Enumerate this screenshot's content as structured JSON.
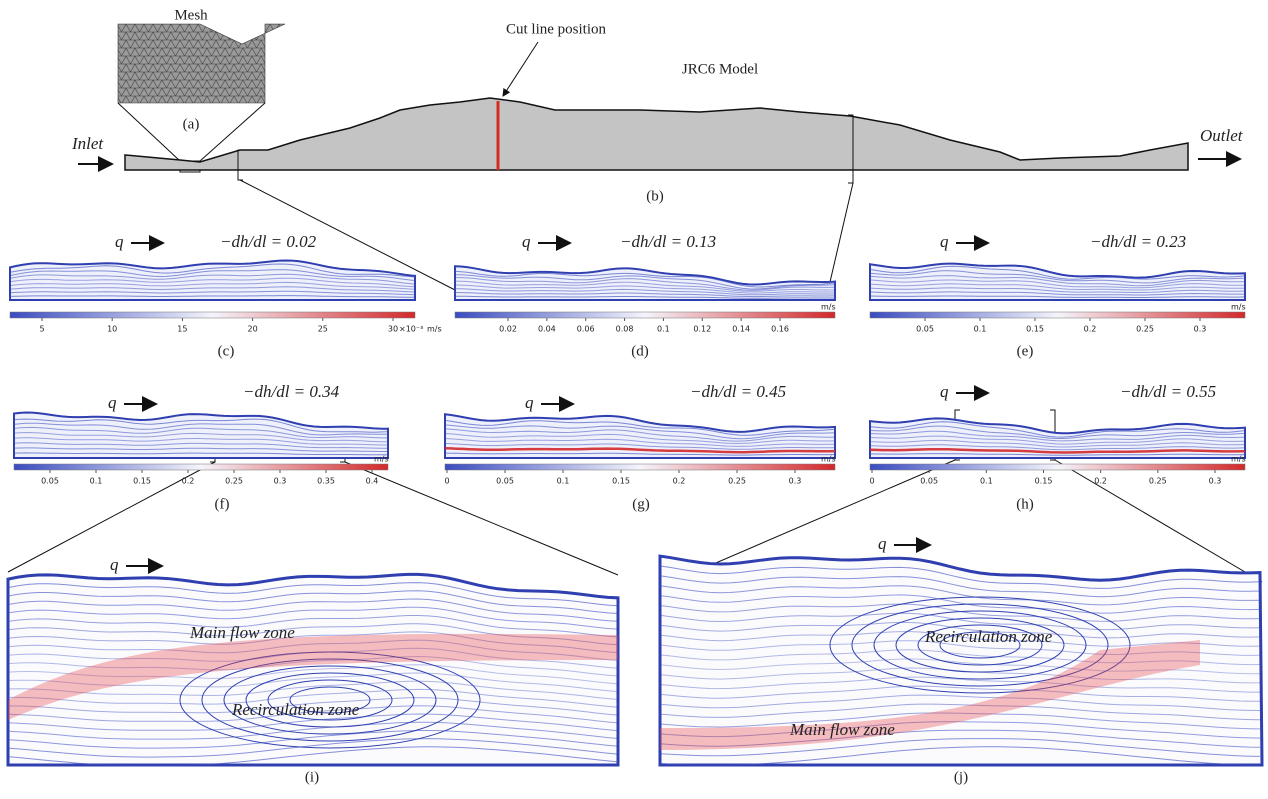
{
  "panel_a": {
    "title": "Mesh",
    "label": "(a)"
  },
  "panel_b": {
    "title": "JRC6 Model",
    "annotation": "Cut line position",
    "inlet": "Inlet",
    "outlet": "Outlet",
    "label": "(b)"
  },
  "flow_panels": [
    {
      "flow": "q",
      "gradient": "−dh/dl = 0.02",
      "colorbar_ticks": [
        "5",
        "10",
        "15",
        "20",
        "25",
        "30"
      ],
      "colorbar_multiplier": "×10⁻³",
      "colorbar_unit": "m/s",
      "label": "(c)"
    },
    {
      "flow": "q",
      "gradient": "−dh/dl = 0.13",
      "colorbar_ticks": [
        "0.02",
        "0.04",
        "0.06",
        "0.08",
        "0.1",
        "0.12",
        "0.14",
        "0.16"
      ],
      "colorbar_unit": "m/s",
      "label": "(d)"
    },
    {
      "flow": "q",
      "gradient": "−dh/dl = 0.23",
      "colorbar_ticks": [
        "0.05",
        "0.1",
        "0.15",
        "0.2",
        "0.25",
        "0.3"
      ],
      "colorbar_unit": "m/s",
      "label": "(e)"
    },
    {
      "flow": "q",
      "gradient": "−dh/dl = 0.34",
      "colorbar_ticks": [
        "0.05",
        "0.1",
        "0.15",
        "0.2",
        "0.25",
        "0.3",
        "0.35",
        "0.4"
      ],
      "colorbar_unit": "m/s",
      "label": "(f)"
    },
    {
      "flow": "q",
      "gradient": "−dh/dl = 0.45",
      "colorbar_ticks": [
        "0",
        "0.05",
        "0.1",
        "0.15",
        "0.2",
        "0.25",
        "0.3"
      ],
      "colorbar_unit": "m/s",
      "label": "(g)"
    },
    {
      "flow": "q",
      "gradient": "−dh/dl = 0.55",
      "colorbar_ticks": [
        "0",
        "0.05",
        "0.1",
        "0.15",
        "0.2",
        "0.25",
        "0.3"
      ],
      "colorbar_unit": "m/s",
      "label": "(h)"
    }
  ],
  "zoom_panels": [
    {
      "flow": "q",
      "main_zone": "Main flow zone",
      "recirculation_zone": "Recirculation zone",
      "label": "(i)"
    },
    {
      "flow": "q",
      "main_zone": "Main flow zone",
      "recirculation_zone": "Recirculation zone",
      "label": "(j)"
    }
  ]
}
